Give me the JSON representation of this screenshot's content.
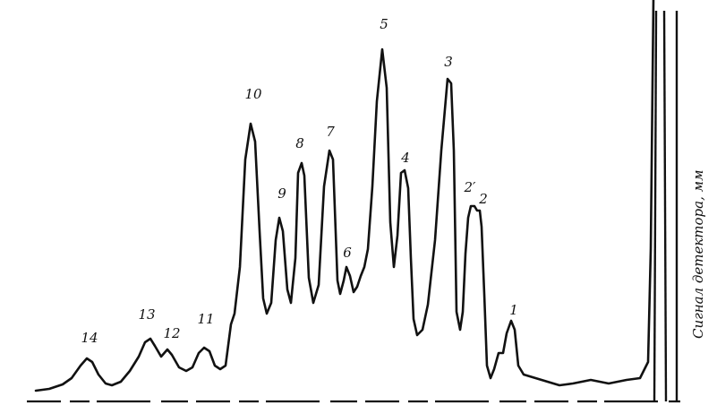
{
  "chart_data": {
    "type": "line",
    "title": "",
    "xlabel": "",
    "ylabel": "Сигнал детектора, мм",
    "grid": false,
    "peak_labels": [
      "14",
      "13",
      "12",
      "11",
      "10",
      "9",
      "8",
      "7",
      "6",
      "5",
      "4",
      "3",
      "2′",
      "2",
      "1"
    ],
    "series": [
      {
        "points": [
          [
            40,
            2
          ],
          [
            55,
            4
          ],
          [
            70,
            9
          ],
          [
            80,
            16
          ],
          [
            90,
            30
          ],
          [
            97,
            38
          ],
          [
            103,
            34
          ],
          [
            110,
            20
          ],
          [
            118,
            10
          ],
          [
            125,
            8
          ],
          [
            135,
            12
          ],
          [
            145,
            24
          ],
          [
            155,
            40
          ],
          [
            162,
            56
          ],
          [
            168,
            60
          ],
          [
            173,
            52
          ],
          [
            180,
            40
          ],
          [
            187,
            48
          ],
          [
            192,
            42
          ],
          [
            200,
            28
          ],
          [
            208,
            24
          ],
          [
            215,
            28
          ],
          [
            222,
            44
          ],
          [
            228,
            50
          ],
          [
            234,
            46
          ],
          [
            240,
            30
          ],
          [
            246,
            26
          ],
          [
            252,
            30
          ],
          [
            258,
            76
          ],
          [
            262,
            88
          ],
          [
            268,
            140
          ],
          [
            274,
            260
          ],
          [
            280,
            300
          ],
          [
            285,
            280
          ],
          [
            290,
            180
          ],
          [
            294,
            105
          ],
          [
            298,
            88
          ],
          [
            303,
            100
          ],
          [
            308,
            170
          ],
          [
            312,
            195
          ],
          [
            316,
            180
          ],
          [
            321,
            115
          ],
          [
            325,
            100
          ],
          [
            330,
            150
          ],
          [
            333,
            245
          ],
          [
            337,
            256
          ],
          [
            340,
            242
          ],
          [
            345,
            128
          ],
          [
            350,
            100
          ],
          [
            356,
            120
          ],
          [
            362,
            230
          ],
          [
            368,
            270
          ],
          [
            372,
            260
          ],
          [
            377,
            125
          ],
          [
            380,
            110
          ],
          [
            384,
            125
          ],
          [
            387,
            140
          ],
          [
            391,
            130
          ],
          [
            395,
            112
          ],
          [
            399,
            118
          ],
          [
            403,
            130
          ],
          [
            407,
            140
          ],
          [
            411,
            160
          ],
          [
            416,
            230
          ],
          [
            421,
            325
          ],
          [
            427,
            383
          ],
          [
            432,
            340
          ],
          [
            436,
            190
          ],
          [
            440,
            140
          ],
          [
            444,
            175
          ],
          [
            448,
            245
          ],
          [
            452,
            248
          ],
          [
            456,
            228
          ],
          [
            459,
            150
          ],
          [
            462,
            82
          ],
          [
            466,
            64
          ],
          [
            472,
            70
          ],
          [
            478,
            98
          ],
          [
            486,
            170
          ],
          [
            493,
            270
          ],
          [
            500,
            350
          ],
          [
            504,
            345
          ],
          [
            507,
            270
          ],
          [
            510,
            90
          ],
          [
            514,
            70
          ],
          [
            517,
            90
          ],
          [
            520,
            155
          ],
          [
            523,
            195
          ],
          [
            526,
            208
          ],
          [
            530,
            208
          ],
          [
            533,
            203
          ],
          [
            536,
            203
          ],
          [
            538,
            185
          ],
          [
            541,
            110
          ],
          [
            544,
            30
          ],
          [
            548,
            16
          ],
          [
            552,
            26
          ],
          [
            557,
            44
          ],
          [
            562,
            44
          ],
          [
            566,
            66
          ],
          [
            571,
            80
          ],
          [
            575,
            70
          ],
          [
            579,
            30
          ],
          [
            585,
            20
          ],
          [
            605,
            14
          ],
          [
            625,
            8
          ],
          [
            640,
            10
          ],
          [
            660,
            14
          ],
          [
            680,
            10
          ],
          [
            700,
            14
          ],
          [
            715,
            16
          ],
          [
            724,
            34
          ],
          [
            727,
            160
          ],
          [
            730,
            440
          ]
        ]
      }
    ]
  }
}
